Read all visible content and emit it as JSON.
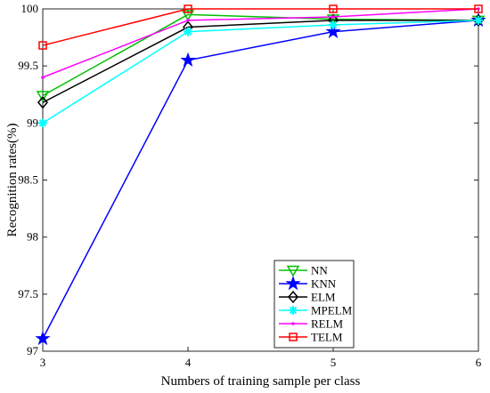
{
  "chart_data": {
    "type": "line",
    "title": "",
    "xlabel": "Numbers of training sample per class",
    "ylabel": "Recognition rates(%)",
    "x": [
      3,
      4,
      5,
      6
    ],
    "xticks": [
      "3",
      "4",
      "5",
      "6"
    ],
    "xlim": [
      3,
      6
    ],
    "ylim": [
      97,
      100
    ],
    "yticks": [
      "97",
      "97.5",
      "98",
      "98.5",
      "99",
      "99.5",
      "100"
    ],
    "grid": false,
    "legend_position": "bottom-right",
    "series": [
      {
        "name": "NN",
        "color": "#00c000",
        "marker": "triangle-down",
        "values": [
          99.24,
          99.95,
          99.91,
          99.9
        ]
      },
      {
        "name": "KNN",
        "color": "#0000ff",
        "marker": "star",
        "values": [
          97.11,
          99.55,
          99.8,
          99.9
        ]
      },
      {
        "name": "ELM",
        "color": "#000000",
        "marker": "diamond",
        "values": [
          99.18,
          99.84,
          99.9,
          99.9
        ]
      },
      {
        "name": "MPELM",
        "color": "#00ffff",
        "marker": "asterisk",
        "values": [
          99.0,
          99.8,
          99.86,
          99.9
        ]
      },
      {
        "name": "RELM",
        "color": "#ff00ff",
        "marker": "dot",
        "values": [
          99.4,
          99.9,
          99.93,
          100.0
        ]
      },
      {
        "name": "TELM",
        "color": "#ff0000",
        "marker": "square",
        "values": [
          99.68,
          100.0,
          100.0,
          100.0
        ]
      }
    ]
  }
}
